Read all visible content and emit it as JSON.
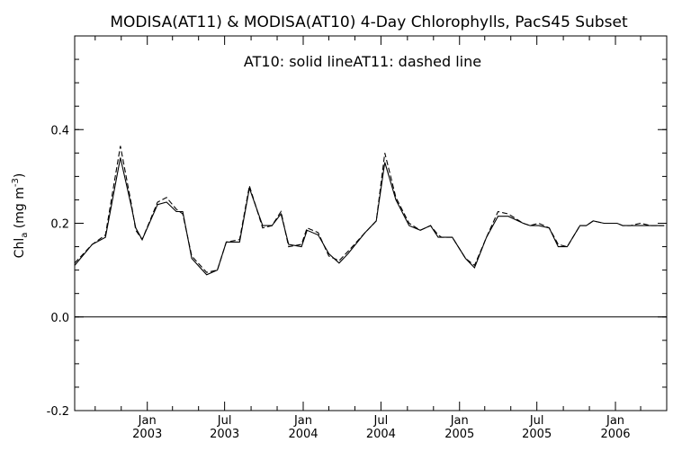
{
  "chart_data": {
    "type": "line",
    "title": "MODISA(AT11) & MODISA(AT10) 4-Day Chlorophylls, PacS45 Subset",
    "annotation": {
      "part1": "AT10: solid line",
      "part2": "AT11: dashed line"
    },
    "ylabel": {
      "main": "Chl",
      "sub": "a",
      "unit_open": " (mg m",
      "unit_sup": "-3",
      "unit_close": ")"
    },
    "ylim": [
      -0.2,
      0.6
    ],
    "y_ticks": [
      {
        "value": -0.2,
        "label": "-0.2"
      },
      {
        "value": 0.0,
        "label": "0.0"
      },
      {
        "value": 0.2,
        "label": "0.2"
      },
      {
        "value": 0.4,
        "label": "0.4"
      }
    ],
    "y_minor_step": 0.05,
    "xlim": [
      "2002-07-15",
      "2006-05-01"
    ],
    "x_ticks": [
      {
        "date": "2003-01-01",
        "month": "Jan",
        "year": "2003"
      },
      {
        "date": "2003-07-01",
        "month": "Jul",
        "year": "2003"
      },
      {
        "date": "2004-01-01",
        "month": "Jan",
        "year": "2004"
      },
      {
        "date": "2004-07-01",
        "month": "Jul",
        "year": "2004"
      },
      {
        "date": "2005-01-01",
        "month": "Jan",
        "year": "2005"
      },
      {
        "date": "2005-07-01",
        "month": "Jul",
        "year": "2005"
      },
      {
        "date": "2006-01-01",
        "month": "Jan",
        "year": "2006"
      }
    ],
    "x_minor_ticks": [
      "2002-09-01",
      "2002-11-01",
      "2003-03-01",
      "2003-05-01",
      "2003-09-01",
      "2003-11-01",
      "2004-03-01",
      "2004-05-01",
      "2004-09-01",
      "2004-11-01",
      "2005-03-01",
      "2005-05-01",
      "2005-09-01",
      "2005-11-01",
      "2006-03-01"
    ],
    "zero_line": 0.0,
    "series": [
      {
        "style": "solid",
        "x": [
          "2002-07-15",
          "2002-08-25",
          "2002-09-25",
          "2002-10-30",
          "2002-11-25",
          "2002-12-05",
          "2002-12-20",
          "2003-01-25",
          "2003-02-15",
          "2003-03-10",
          "2003-03-25",
          "2003-04-15",
          "2003-05-20",
          "2003-06-14",
          "2003-07-05",
          "2003-08-05",
          "2003-08-28",
          "2003-09-28",
          "2003-10-20",
          "2003-11-10",
          "2003-11-28",
          "2003-12-28",
          "2004-01-10",
          "2004-02-05",
          "2004-03-01",
          "2004-03-25",
          "2004-04-15",
          "2004-05-25",
          "2004-06-20",
          "2004-07-10",
          "2004-08-05",
          "2004-09-05",
          "2004-10-01",
          "2004-10-25",
          "2004-11-12",
          "2004-11-20",
          "2004-12-15",
          "2005-01-15",
          "2005-02-05",
          "2005-03-05",
          "2005-04-01",
          "2005-04-25",
          "2005-05-30",
          "2005-06-15",
          "2005-07-05",
          "2005-07-30",
          "2005-08-20",
          "2005-09-10",
          "2005-10-10",
          "2005-10-25",
          "2005-11-10",
          "2005-12-05",
          "2005-12-26",
          "2006-01-05",
          "2006-01-18",
          "2006-02-05",
          "2006-03-01",
          "2006-03-25",
          "2006-04-25"
        ],
        "y": [
          0.11,
          0.155,
          0.17,
          0.34,
          0.235,
          0.19,
          0.165,
          0.24,
          0.245,
          0.225,
          0.225,
          0.125,
          0.09,
          0.1,
          0.16,
          0.16,
          0.275,
          0.195,
          0.195,
          0.22,
          0.155,
          0.15,
          0.185,
          0.175,
          0.135,
          0.115,
          0.135,
          0.18,
          0.205,
          0.33,
          0.25,
          0.195,
          0.185,
          0.195,
          0.17,
          0.17,
          0.17,
          0.125,
          0.105,
          0.17,
          0.215,
          0.215,
          0.2,
          0.195,
          0.195,
          0.19,
          0.15,
          0.15,
          0.195,
          0.195,
          0.205,
          0.2,
          0.2,
          0.2,
          0.195,
          0.195,
          0.195,
          0.195,
          0.195
        ]
      },
      {
        "style": "dashed",
        "x": [
          "2002-07-15",
          "2002-08-25",
          "2002-09-25",
          "2002-10-30",
          "2002-11-25",
          "2002-12-05",
          "2002-12-20",
          "2003-01-25",
          "2003-02-15",
          "2003-03-10",
          "2003-03-25",
          "2003-04-15",
          "2003-05-20",
          "2003-06-14",
          "2003-07-05",
          "2003-08-05",
          "2003-08-28",
          "2003-09-28",
          "2003-10-20",
          "2003-11-10",
          "2003-11-28",
          "2003-12-28",
          "2004-01-10",
          "2004-02-05",
          "2004-03-01",
          "2004-03-25",
          "2004-04-15",
          "2004-05-25",
          "2004-06-20",
          "2004-07-10",
          "2004-08-05",
          "2004-09-05",
          "2004-10-01",
          "2004-10-25",
          "2004-11-12",
          "2004-11-20",
          "2004-12-15",
          "2005-01-15",
          "2005-02-05",
          "2005-03-05",
          "2005-04-01",
          "2005-04-25",
          "2005-05-30",
          "2005-06-15",
          "2005-07-05",
          "2005-07-30",
          "2005-08-20",
          "2005-09-10",
          "2005-10-10",
          "2005-10-25",
          "2005-11-10",
          "2005-12-05",
          "2005-12-26",
          "2006-01-05",
          "2006-01-18",
          "2006-02-05",
          "2006-03-01",
          "2006-03-25",
          "2006-04-25"
        ],
        "y": [
          0.115,
          0.155,
          0.175,
          0.365,
          0.24,
          0.185,
          0.165,
          0.245,
          0.255,
          0.23,
          0.22,
          0.13,
          0.095,
          0.1,
          0.16,
          0.165,
          0.28,
          0.19,
          0.195,
          0.225,
          0.15,
          0.155,
          0.19,
          0.18,
          0.13,
          0.12,
          0.14,
          0.18,
          0.205,
          0.35,
          0.255,
          0.2,
          0.185,
          0.195,
          0.175,
          0.17,
          0.17,
          0.125,
          0.11,
          0.17,
          0.225,
          0.22,
          0.2,
          0.195,
          0.2,
          0.19,
          0.155,
          0.15,
          0.195,
          0.195,
          0.205,
          0.2,
          0.2,
          0.2,
          0.195,
          0.195,
          0.2,
          0.195,
          0.195
        ]
      }
    ]
  }
}
